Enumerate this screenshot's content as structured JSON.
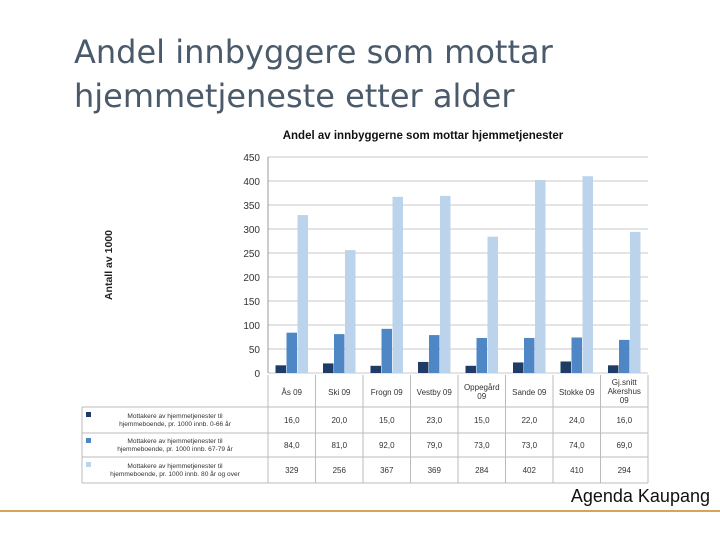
{
  "slide": {
    "title": "Andel innbyggere som mottar hjemmetjeneste etter alder",
    "footer": "Agenda Kaupang"
  },
  "colors": {
    "series": [
      "#1f3c66",
      "#4f86c6",
      "#bcd3ec"
    ],
    "grid": "#c8c8c8",
    "text": "#333333"
  },
  "chart_data": {
    "type": "bar",
    "title": "Andel av innbyggerne som mottar hjemmetjenester",
    "ylabel": "Antall av 1000",
    "ylim": [
      0,
      450
    ],
    "yticks": [
      0,
      50,
      100,
      150,
      200,
      250,
      300,
      350,
      400,
      450
    ],
    "grid": true,
    "legend": "table-below",
    "categories": [
      "Ås 09",
      "Ski 09",
      "Frogn 09",
      "Vestby 09",
      "Oppegård 09",
      "Sande 09",
      "Stokke 09",
      "Gj.snitt Akershus 09"
    ],
    "series": [
      {
        "name": "Mottakere av hjemmetjenester til hjemmeboende, pr. 1000 innb. 0-66 år",
        "values": [
          16,
          20,
          15,
          23,
          15,
          22,
          24,
          16
        ],
        "labels": [
          "16,0",
          "20,0",
          "15,0",
          "23,0",
          "15,0",
          "22,0",
          "24,0",
          "16,0"
        ]
      },
      {
        "name": "Mottakere av hjemmetjenester til hjemmeboende, pr. 1000 innb. 67-79 år",
        "values": [
          84,
          81,
          92,
          79,
          73,
          73,
          74,
          69
        ],
        "labels": [
          "84,0",
          "81,0",
          "92,0",
          "79,0",
          "73,0",
          "73,0",
          "74,0",
          "69,0"
        ]
      },
      {
        "name": "Mottakere av hjemmetjenester til hjemmeboende, pr. 1000 innb. 80 år og over",
        "values": [
          329,
          256,
          367,
          369,
          284,
          402,
          410,
          294
        ],
        "labels": [
          "329",
          "256",
          "367",
          "369",
          "284",
          "402",
          "410",
          "294"
        ]
      }
    ]
  }
}
